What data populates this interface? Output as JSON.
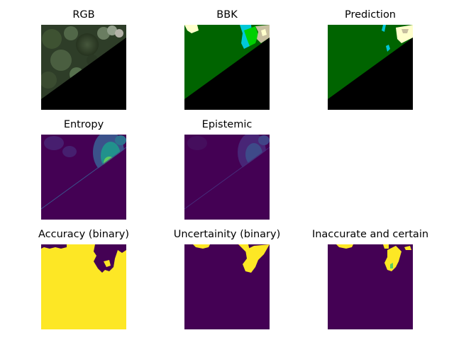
{
  "figure": {
    "panels": [
      {
        "title": "RGB"
      },
      {
        "title": "BBK"
      },
      {
        "title": "Prediction"
      },
      {
        "title": "Entropy"
      },
      {
        "title": "Epistemic"
      },
      {
        "title": "Accuracy (binary)"
      },
      {
        "title": "Uncertainity (binary)"
      },
      {
        "title": "Inaccurate and certain"
      }
    ]
  },
  "colors": {
    "background": "#ffffff",
    "masked_black": "#000000",
    "forest_green": "#006400",
    "bright_green": "#00d000",
    "cyan": "#00c8d8",
    "light_yellow": "#ffffcc",
    "tan": "#c8c0a0",
    "viridis_dark": "#440154",
    "viridis_blue": "#3b528b",
    "viridis_teal": "#21918c",
    "viridis_green": "#5ec962",
    "viridis_yellow": "#fde725"
  }
}
